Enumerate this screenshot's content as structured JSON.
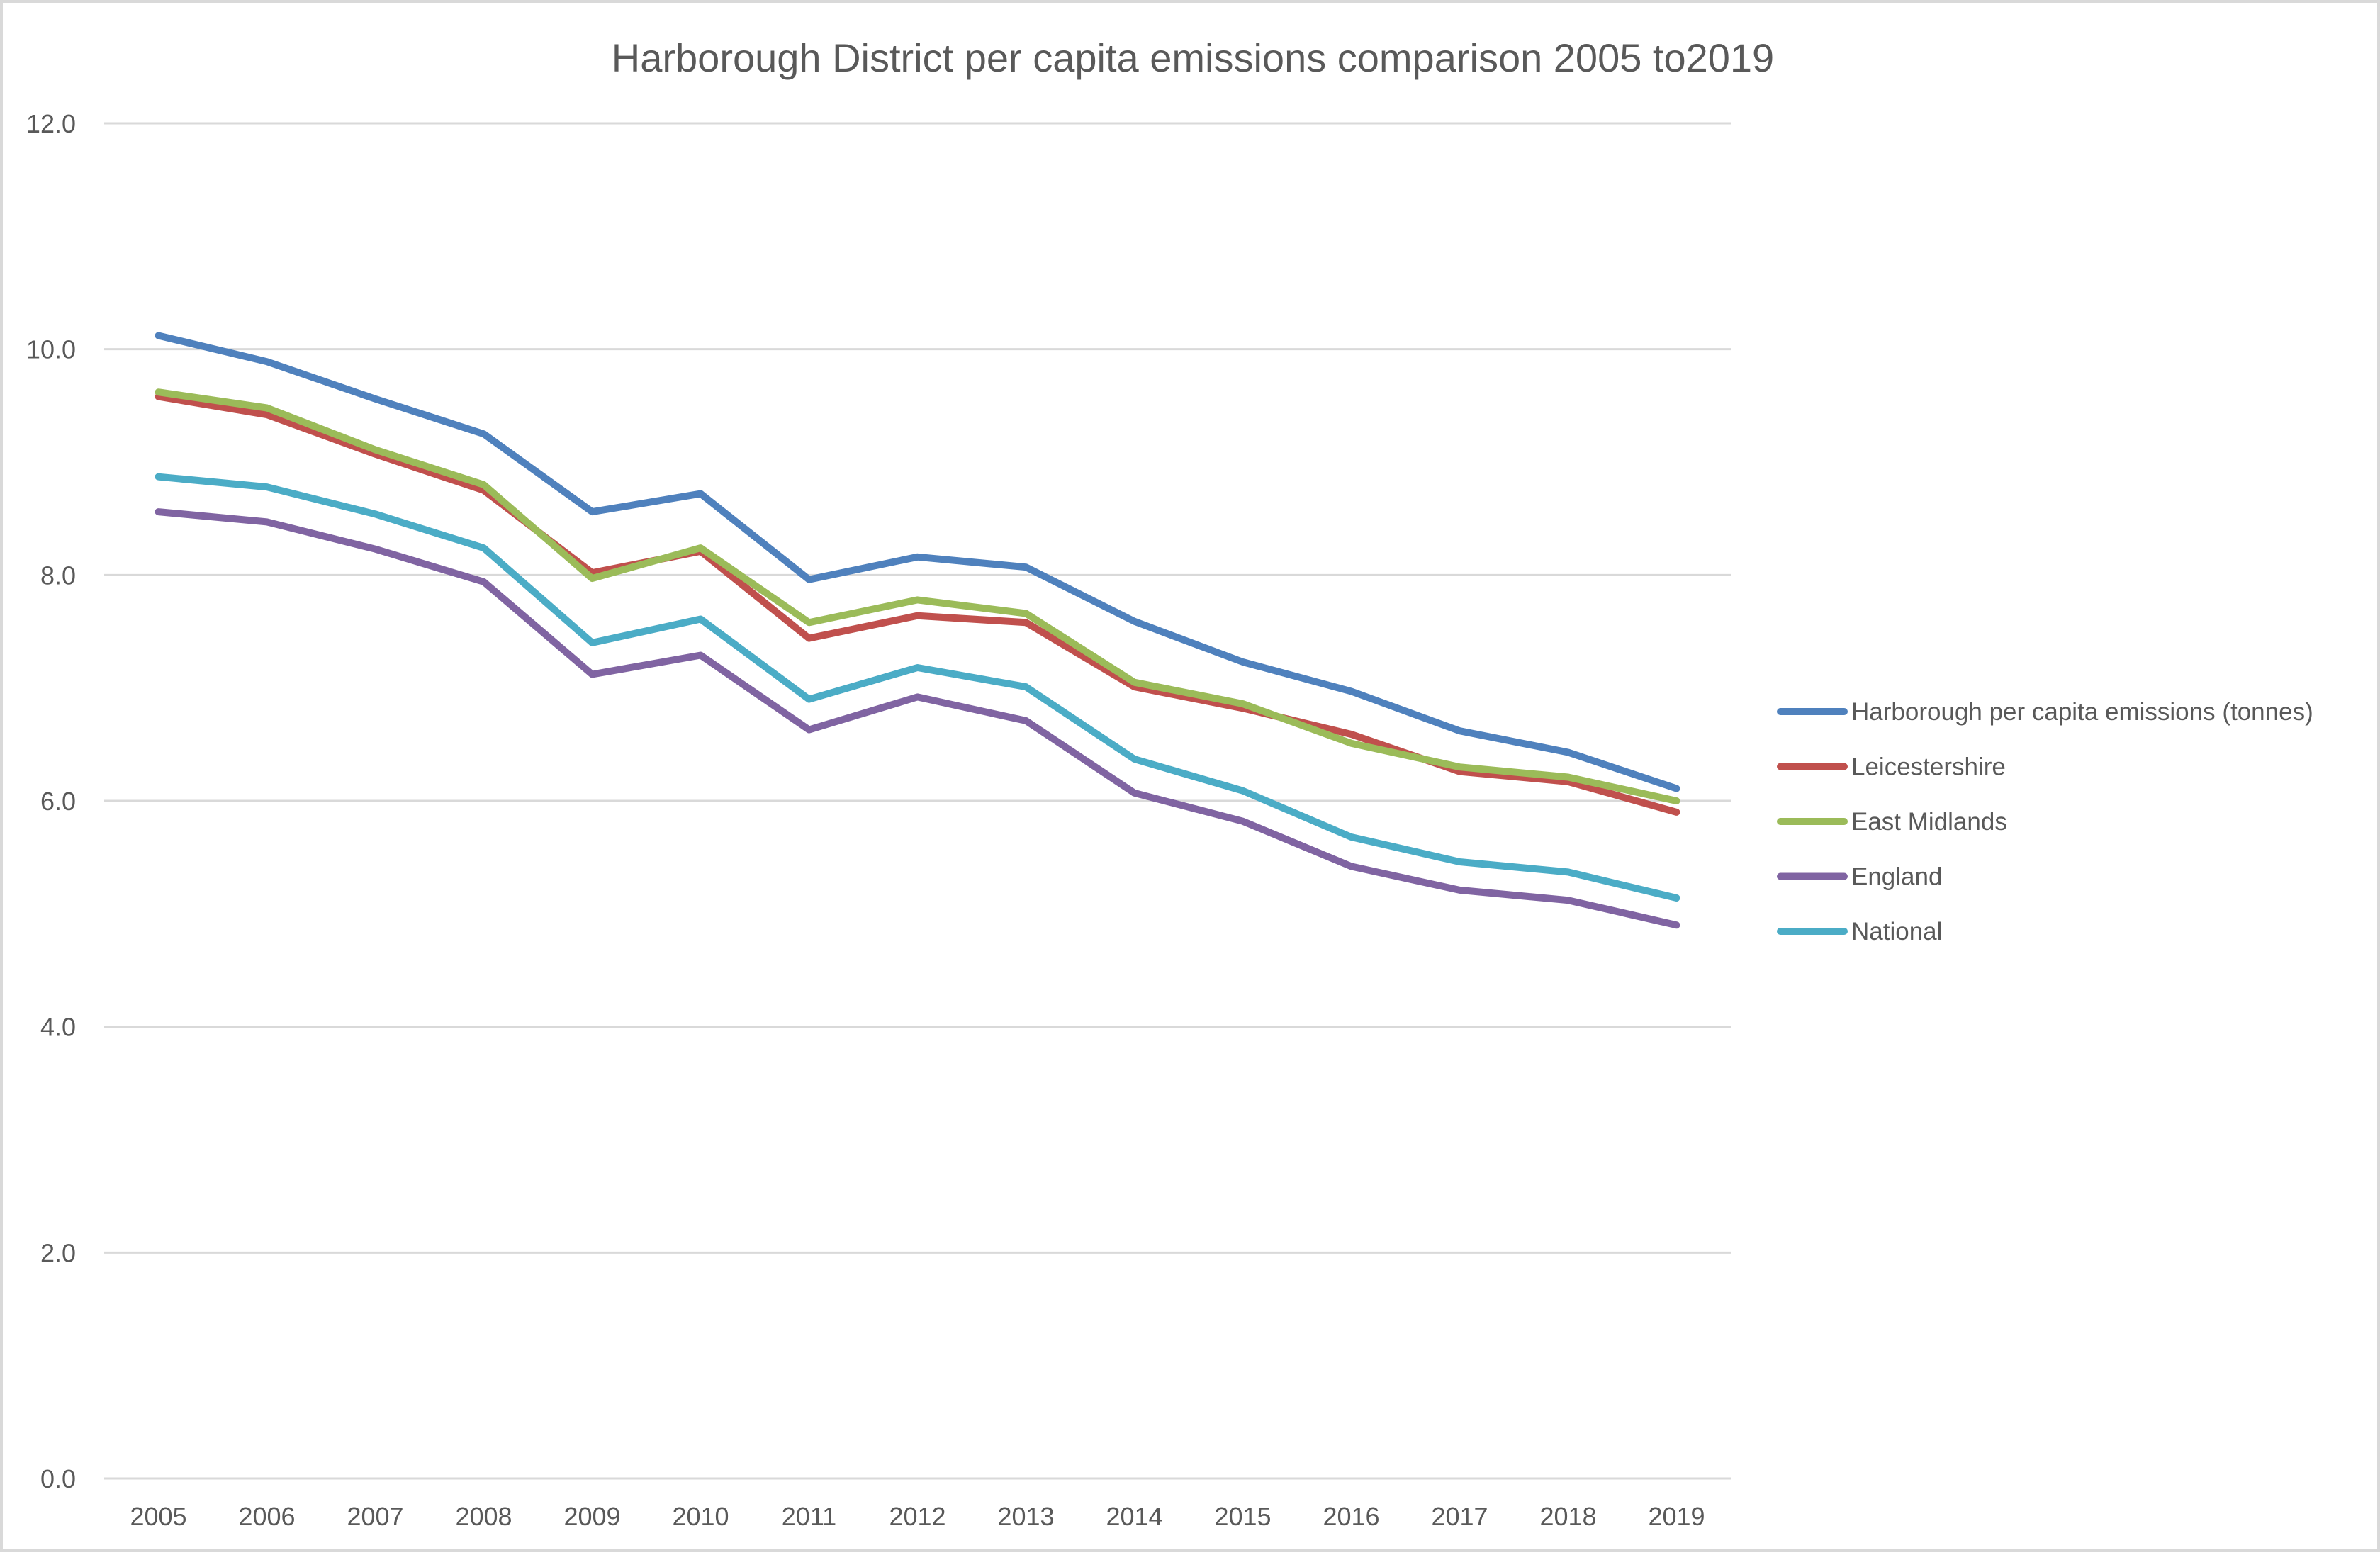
{
  "chart_data": {
    "type": "line",
    "title": "Harborough District per capita emissions comparison 2005 to2019",
    "xlabel": "",
    "ylabel": "",
    "ylim": [
      0,
      12
    ],
    "yticks": [
      "0.0",
      "2.0",
      "4.0",
      "6.0",
      "8.0",
      "10.0",
      "12.0"
    ],
    "ytick_values": [
      0,
      2,
      4,
      6,
      8,
      10,
      12
    ],
    "grid": "horizontal",
    "legend_position": "right",
    "categories": [
      "2005",
      "2006",
      "2007",
      "2008",
      "2009",
      "2010",
      "2011",
      "2012",
      "2013",
      "2014",
      "2015",
      "2016",
      "2017",
      "2018",
      "2019"
    ],
    "series": [
      {
        "name": "Harborough per capita emissions (tonnes)",
        "color": "#4f81bd",
        "values": [
          10.12,
          9.89,
          9.56,
          9.25,
          8.56,
          8.72,
          7.96,
          8.16,
          8.07,
          7.59,
          7.23,
          6.97,
          6.62,
          6.43,
          6.11
        ]
      },
      {
        "name": "Leicestershire",
        "color": "#c0504d",
        "values": [
          9.58,
          9.42,
          9.07,
          8.75,
          8.02,
          8.21,
          7.44,
          7.64,
          7.58,
          7.01,
          6.82,
          6.59,
          6.26,
          6.17,
          5.9
        ]
      },
      {
        "name": "East Midlands",
        "color": "#9bbb59",
        "values": [
          9.62,
          9.48,
          9.11,
          8.8,
          7.97,
          8.24,
          7.58,
          7.78,
          7.66,
          7.05,
          6.86,
          6.51,
          6.3,
          6.21,
          6.0
        ]
      },
      {
        "name": "England",
        "color": "#8064a2",
        "values": [
          8.56,
          8.47,
          8.23,
          7.94,
          7.12,
          7.29,
          6.63,
          6.92,
          6.71,
          6.07,
          5.82,
          5.42,
          5.21,
          5.12,
          4.9
        ]
      },
      {
        "name": "National",
        "color": "#4bacc6",
        "values": [
          8.87,
          8.78,
          8.54,
          8.24,
          7.4,
          7.61,
          6.9,
          7.18,
          7.01,
          6.37,
          6.09,
          5.68,
          5.46,
          5.37,
          5.14
        ]
      }
    ],
    "draw_order": [
      0,
      4,
      3,
      1,
      2
    ]
  },
  "colors": {
    "text": "#595959",
    "gridline": "#d9d9d9",
    "border": "#d9d9d9",
    "background": "#ffffff"
  }
}
